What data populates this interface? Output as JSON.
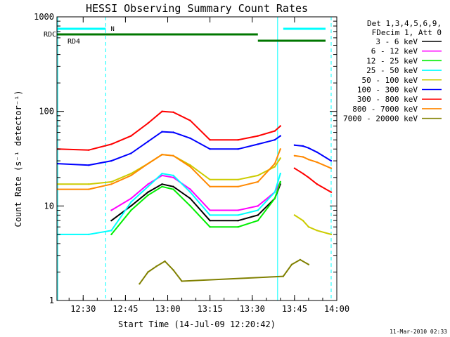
{
  "chart_data": {
    "type": "line",
    "title": "HESSI Observing Summary Count Rates",
    "xlabel": "Start Time (14-Jul-09 12:20:42)",
    "ylabel": "Count Rate (s⁻¹ detector⁻¹)",
    "y_scale": "log",
    "ylim": [
      1,
      1000
    ],
    "xlim": [
      "12:20:42",
      "14:00:00"
    ],
    "x_ticks": [
      "12:30",
      "12:45",
      "13:00",
      "13:15",
      "13:30",
      "13:45",
      "14:00"
    ],
    "y_ticks": [
      "1",
      "10",
      "100",
      "1000"
    ],
    "legend_header": [
      "Det 1,3,4,5,6,9,",
      "FDecim 1, Att 0"
    ],
    "legend_position": "right",
    "footer": "11-Mar-2010 02:33",
    "series": [
      {
        "name": "3 - 6 keV",
        "color": "#000000",
        "x": [
          "12:21",
          "12:32",
          "12:40",
          "12:47",
          "12:53",
          "12:58",
          "13:02",
          "13:08",
          "13:15",
          "13:25",
          "13:32",
          "13:38",
          "13:40",
          "13:43",
          "13:45",
          "13:48",
          "13:50",
          "13:53",
          "13:58"
        ],
        "y": [
          null,
          null,
          7,
          10,
          14,
          17,
          16,
          12,
          7,
          7,
          8,
          12,
          17,
          null,
          null,
          null,
          null,
          null,
          null
        ]
      },
      {
        "name": "6 - 12 keV",
        "color": "#ff00ff",
        "x": [
          "12:21",
          "12:32",
          "12:40",
          "12:47",
          "12:53",
          "12:58",
          "13:02",
          "13:08",
          "13:15",
          "13:25",
          "13:32",
          "13:38",
          "13:40",
          "13:43",
          "13:45",
          "13:48",
          "13:50",
          "13:53",
          "13:58"
        ],
        "y": [
          null,
          null,
          9,
          12,
          17,
          21,
          20,
          15,
          9,
          9,
          10,
          14,
          18,
          null,
          null,
          null,
          null,
          null,
          null
        ]
      },
      {
        "name": "12 - 25 keV",
        "color": "#00ee00",
        "x": [
          "12:21",
          "12:32",
          "12:40",
          "12:47",
          "12:53",
          "12:58",
          "13:02",
          "13:08",
          "13:15",
          "13:25",
          "13:32",
          "13:38",
          "13:40",
          "13:43",
          "13:45",
          "13:48",
          "13:50",
          "13:53",
          "13:58"
        ],
        "y": [
          null,
          null,
          5,
          9,
          13,
          16,
          15,
          10,
          6,
          6,
          7,
          12,
          18,
          null,
          null,
          null,
          null,
          null,
          null
        ]
      },
      {
        "name": "25 - 50 keV",
        "color": "#00ffff",
        "x": [
          "12:21",
          "12:32",
          "12:40",
          "12:47",
          "12:53",
          "12:58",
          "13:02",
          "13:08",
          "13:15",
          "13:25",
          "13:32",
          "13:38",
          "13:40",
          "13:43",
          "13:45",
          "13:48",
          "13:50",
          "13:53",
          "13:58"
        ],
        "y": [
          5,
          5,
          5.5,
          11,
          16,
          22,
          21,
          14,
          8,
          8,
          9,
          14,
          22,
          null,
          null,
          null,
          null,
          null,
          null
        ]
      },
      {
        "name": "50 - 100 keV",
        "color": "#cccc00",
        "x": [
          "12:21",
          "12:32",
          "12:40",
          "12:47",
          "12:53",
          "12:58",
          "13:02",
          "13:08",
          "13:15",
          "13:25",
          "13:32",
          "13:38",
          "13:40",
          "13:43",
          "13:45",
          "13:48",
          "13:50",
          "13:53",
          "13:58"
        ],
        "y": [
          17,
          17,
          18,
          22,
          28,
          35,
          34,
          27,
          19,
          19,
          21,
          26,
          32,
          null,
          8,
          7,
          6,
          5.5,
          5
        ]
      },
      {
        "name": "100 - 300 keV",
        "color": "#0000ff",
        "x": [
          "12:21",
          "12:32",
          "12:40",
          "12:47",
          "12:53",
          "12:58",
          "13:02",
          "13:08",
          "13:15",
          "13:25",
          "13:32",
          "13:38",
          "13:40",
          "13:43",
          "13:45",
          "13:48",
          "13:50",
          "13:53",
          "13:58"
        ],
        "y": [
          28,
          27,
          30,
          36,
          48,
          61,
          60,
          52,
          40,
          40,
          45,
          50,
          55,
          null,
          44,
          43,
          41,
          37,
          30
        ]
      },
      {
        "name": "300 - 800 keV",
        "color": "#ff0000",
        "x": [
          "12:21",
          "12:32",
          "12:40",
          "12:47",
          "12:53",
          "12:58",
          "13:02",
          "13:08",
          "13:15",
          "13:25",
          "13:32",
          "13:38",
          "13:40",
          "13:43",
          "13:45",
          "13:48",
          "13:50",
          "13:53",
          "13:58"
        ],
        "y": [
          40,
          39,
          45,
          55,
          75,
          100,
          98,
          80,
          50,
          50,
          55,
          62,
          70,
          null,
          25,
          22,
          20,
          17,
          14
        ]
      },
      {
        "name": "800 - 7000 keV",
        "color": "#ff8800",
        "x": [
          "12:21",
          "12:32",
          "12:40",
          "12:47",
          "12:53",
          "12:58",
          "13:02",
          "13:08",
          "13:15",
          "13:25",
          "13:32",
          "13:38",
          "13:40",
          "13:43",
          "13:45",
          "13:48",
          "13:50",
          "13:53",
          "13:58"
        ],
        "y": [
          15,
          15,
          17,
          21,
          28,
          35,
          34,
          26,
          16,
          16,
          18,
          28,
          40,
          null,
          34,
          33,
          31,
          29,
          25
        ]
      },
      {
        "name": "7000 - 20000 keV",
        "color": "#808000",
        "x": [
          "12:50",
          "12:53",
          "12:56",
          "12:59",
          "13:02",
          "13:05",
          "13:41",
          "13:44",
          "13:47",
          "13:50"
        ],
        "y": [
          1.5,
          2,
          2.3,
          2.6,
          2.1,
          1.6,
          1.8,
          2.4,
          2.7,
          2.4
        ]
      }
    ],
    "annotations": {
      "RDC": "RDC",
      "RD4": "RD4",
      "N": "N"
    },
    "grid": false
  }
}
